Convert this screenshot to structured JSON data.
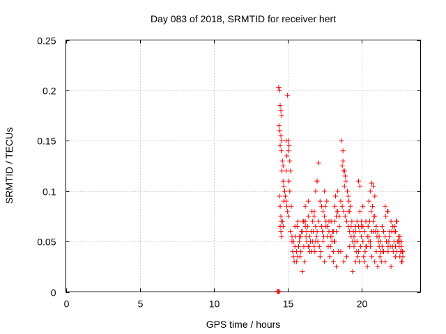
{
  "chart_data": {
    "type": "scatter",
    "title": "Day 083 of 2018, SRMTID for receiver hert",
    "xlabel": "GPS time / hours",
    "ylabel": "SRMTID / TECUs",
    "xlim": [
      0,
      24
    ],
    "ylim": [
      0,
      0.25
    ],
    "xticks": [
      0,
      5,
      10,
      15,
      20
    ],
    "yticks": [
      0,
      0.05,
      0.1,
      0.15,
      0.2,
      0.25
    ],
    "xtick_labels": [
      "0",
      "5",
      "10",
      "15",
      "20"
    ],
    "ytick_labels": [
      "0",
      "0.05",
      "0.1",
      "0.15",
      "0.2",
      "0.25"
    ],
    "grid": true,
    "marker": "+",
    "color": "#ff0000",
    "series": [
      {
        "name": "SRMTID",
        "x": [
          14.3,
          14.35,
          14.4,
          14.45,
          14.4,
          14.45,
          14.5,
          14.42,
          14.48,
          14.55,
          14.6,
          14.5,
          14.58,
          14.65,
          14.7,
          14.62,
          14.55,
          14.6,
          14.7,
          14.75,
          14.8,
          14.85,
          14.9,
          14.95,
          15.0,
          15.05,
          14.5,
          14.55,
          14.6,
          14.65,
          14.7,
          14.75,
          14.8,
          14.85,
          14.9,
          15.0,
          15.05,
          15.1,
          15.15,
          15.2,
          15.1,
          15.15,
          15.05,
          14.95,
          14.9,
          14.45,
          14.5,
          14.55,
          14.6,
          15.2,
          15.3,
          15.4,
          15.5,
          15.6,
          15.7,
          15.8,
          15.9,
          16.0,
          16.1,
          16.2,
          16.3,
          16.4,
          16.5,
          16.6,
          16.7,
          16.8,
          16.9,
          15.25,
          15.35,
          15.45,
          15.55,
          15.65,
          15.75,
          15.85,
          15.95,
          16.05,
          16.15,
          16.25,
          16.35,
          16.45,
          16.55,
          16.65,
          16.75,
          16.85,
          16.95,
          15.3,
          15.5,
          15.7,
          15.9,
          16.1,
          16.3,
          16.5,
          16.7,
          16.9,
          15.4,
          15.6,
          15.8,
          16.0,
          16.2,
          16.4,
          16.6,
          16.8,
          16.2,
          16.4,
          16.8,
          17.0,
          17.0,
          17.1,
          17.2,
          17.3,
          17.4,
          17.5,
          17.6,
          17.7,
          17.8,
          17.9,
          18.0,
          18.1,
          18.2,
          18.3,
          18.4,
          18.5,
          17.05,
          17.15,
          17.25,
          17.35,
          17.45,
          17.55,
          17.65,
          17.75,
          17.85,
          17.95,
          18.05,
          18.15,
          18.25,
          18.35,
          18.45,
          17.1,
          17.3,
          17.5,
          17.7,
          17.9,
          18.1,
          18.3,
          18.5,
          17.2,
          17.4,
          17.6,
          17.8,
          18.0,
          18.2,
          18.4,
          16.9,
          17.0,
          17.5,
          18.1,
          18.3,
          18.2,
          18.6,
          18.7,
          18.8,
          18.9,
          19.0,
          19.1,
          19.2,
          19.3,
          19.4,
          19.5,
          19.6,
          19.7,
          19.8,
          19.9,
          20.0,
          18.65,
          18.75,
          18.85,
          18.95,
          19.05,
          19.15,
          19.25,
          19.35,
          19.45,
          19.55,
          19.65,
          19.75,
          19.85,
          19.95,
          18.7,
          18.9,
          19.1,
          19.3,
          19.5,
          19.7,
          19.9,
          18.6,
          18.8,
          19.0,
          19.2,
          19.4,
          19.6,
          19.8,
          20.0,
          18.75,
          18.8,
          18.85,
          19.1,
          19.2,
          19.6,
          19.8,
          19.9,
          20.1,
          20.2,
          20.3,
          20.4,
          20.5,
          20.6,
          20.7,
          20.8,
          20.9,
          21.0,
          21.1,
          21.2,
          21.3,
          21.4,
          21.5,
          20.15,
          20.25,
          20.35,
          20.45,
          20.55,
          20.65,
          20.75,
          20.85,
          20.95,
          21.05,
          21.15,
          21.25,
          21.35,
          21.45,
          20.2,
          20.4,
          20.6,
          20.8,
          21.0,
          21.2,
          21.4,
          20.1,
          20.3,
          20.5,
          20.7,
          20.9,
          21.1,
          21.3,
          21.5,
          20.6,
          20.7,
          20.8,
          20.9,
          20.5,
          20.0,
          20.1,
          21.6,
          21.7,
          21.8,
          21.9,
          22.0,
          22.1,
          22.2,
          22.3,
          22.4,
          22.5,
          22.6,
          22.7,
          22.8,
          21.65,
          21.75,
          21.85,
          21.95,
          22.05,
          22.15,
          22.25,
          22.35,
          22.45,
          22.55,
          22.65,
          22.75,
          21.6,
          21.8,
          22.0,
          22.2,
          22.4,
          22.6,
          22.8,
          21.7,
          21.9,
          22.1,
          22.3,
          22.5,
          22.7,
          21.5,
          21.6,
          21.8,
          22.3,
          22.6,
          22.7,
          22.75
        ],
        "y": [
          0.0,
          0.0,
          0.0,
          0.0,
          0.203,
          0.2,
          0.185,
          0.165,
          0.16,
          0.155,
          0.15,
          0.145,
          0.14,
          0.13,
          0.125,
          0.12,
          0.18,
          0.175,
          0.11,
          0.105,
          0.1,
          0.095,
          0.09,
          0.085,
          0.08,
          0.075,
          0.065,
          0.06,
          0.055,
          0.07,
          0.065,
          0.09,
          0.1,
          0.095,
          0.12,
          0.195,
          0.15,
          0.145,
          0.13,
          0.12,
          0.11,
          0.1,
          0.14,
          0.135,
          0.15,
          0.095,
          0.085,
          0.075,
          0.07,
          0.06,
          0.055,
          0.05,
          0.045,
          0.04,
          0.035,
          0.05,
          0.055,
          0.06,
          0.07,
          0.065,
          0.05,
          0.045,
          0.04,
          0.06,
          0.07,
          0.075,
          0.05,
          0.085,
          0.04,
          0.03,
          0.055,
          0.065,
          0.045,
          0.035,
          0.06,
          0.07,
          0.03,
          0.055,
          0.065,
          0.045,
          0.05,
          0.08,
          0.06,
          0.04,
          0.055,
          0.05,
          0.065,
          0.07,
          0.04,
          0.045,
          0.06,
          0.055,
          0.05,
          0.065,
          0.035,
          0.03,
          0.055,
          0.02,
          0.07,
          0.075,
          0.04,
          0.045,
          0.085,
          0.09,
          0.08,
          0.06,
          0.11,
          0.128,
          0.09,
          0.085,
          0.08,
          0.075,
          0.07,
          0.065,
          0.06,
          0.055,
          0.05,
          0.06,
          0.07,
          0.075,
          0.08,
          0.065,
          0.05,
          0.045,
          0.04,
          0.06,
          0.055,
          0.085,
          0.09,
          0.045,
          0.035,
          0.07,
          0.06,
          0.05,
          0.095,
          0.08,
          0.04,
          0.07,
          0.065,
          0.03,
          0.055,
          0.045,
          0.04,
          0.06,
          0.075,
          0.035,
          0.05,
          0.065,
          0.07,
          0.055,
          0.085,
          0.1,
          0.1,
          0.11,
          0.1,
          0.03,
          0.025,
          0.05,
          0.09,
          0.085,
          0.08,
          0.075,
          0.07,
          0.065,
          0.06,
          0.055,
          0.05,
          0.045,
          0.06,
          0.07,
          0.065,
          0.08,
          0.055,
          0.15,
          0.14,
          0.12,
          0.11,
          0.1,
          0.09,
          0.085,
          0.07,
          0.06,
          0.05,
          0.04,
          0.035,
          0.03,
          0.045,
          0.125,
          0.115,
          0.08,
          0.065,
          0.055,
          0.05,
          0.06,
          0.04,
          0.03,
          0.035,
          0.045,
          0.02,
          0.03,
          0.04,
          0.07,
          0.13,
          0.12,
          0.105,
          0.095,
          0.08,
          0.065,
          0.11,
          0.105,
          0.065,
          0.06,
          0.07,
          0.055,
          0.05,
          0.045,
          0.06,
          0.07,
          0.075,
          0.065,
          0.06,
          0.055,
          0.05,
          0.045,
          0.04,
          0.035,
          0.04,
          0.045,
          0.065,
          0.07,
          0.08,
          0.085,
          0.075,
          0.06,
          0.055,
          0.05,
          0.035,
          0.03,
          0.04,
          0.03,
          0.025,
          0.05,
          0.06,
          0.04,
          0.045,
          0.065,
          0.05,
          0.045,
          0.055,
          0.035,
          0.03,
          0.025,
          0.04,
          0.06,
          0.1,
          0.108,
          0.105,
          0.095,
          0.09,
          0.065,
          0.085,
          0.055,
          0.05,
          0.045,
          0.06,
          0.07,
          0.065,
          0.05,
          0.045,
          0.04,
          0.055,
          0.035,
          0.03,
          0.035,
          0.075,
          0.08,
          0.05,
          0.045,
          0.06,
          0.04,
          0.065,
          0.07,
          0.05,
          0.045,
          0.04,
          0.03,
          0.03,
          0.04,
          0.025,
          0.06,
          0.07,
          0.05,
          0.04,
          0.05,
          0.055,
          0.045,
          0.035,
          0.05,
          0.045,
          0.06,
          0.085,
          0.08,
          0.06,
          0.055,
          0.05,
          0.04
        ]
      }
    ]
  }
}
